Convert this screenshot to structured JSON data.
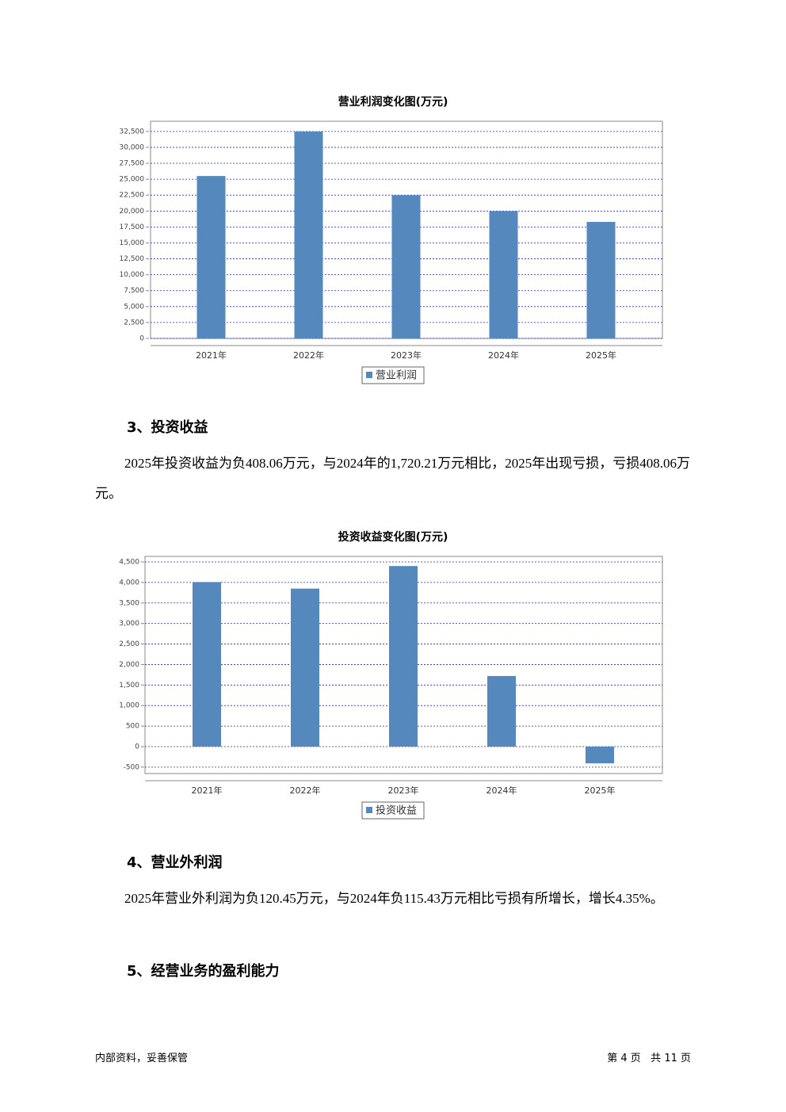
{
  "chart_data": [
    {
      "type": "bar",
      "title": "营业利润变化图(万元)",
      "categories": [
        "2021年",
        "2022年",
        "2023年",
        "2024年",
        "2025年"
      ],
      "series": [
        {
          "name": "营业利润",
          "color": "#5588bd",
          "values": [
            25500,
            32500,
            22500,
            20000,
            18300
          ]
        }
      ],
      "ylim": [
        0,
        34100
      ],
      "yticks": [
        0,
        {
          "value": 2500,
          "label": "2,500"
        },
        {
          "value": 5000,
          "label": "5,000"
        },
        {
          "value": 7500,
          "label": "7,500"
        },
        {
          "value": 10000,
          "label": "10,000"
        },
        {
          "value": 12500,
          "label": "12,500"
        },
        {
          "value": 15000,
          "label": "15,000"
        },
        {
          "value": 17500,
          "label": "17,500"
        },
        {
          "value": 20000,
          "label": "20,000"
        },
        {
          "value": 22500,
          "label": "22,500"
        },
        {
          "value": 25000,
          "label": "25,000"
        },
        {
          "value": 27500,
          "label": "27,500"
        },
        {
          "value": 30000,
          "label": "30,000"
        },
        {
          "value": 32500,
          "label": "32,500"
        }
      ],
      "grid": true
    },
    {
      "type": "bar",
      "title": "投资收益变化图(万元)",
      "categories": [
        "2021年",
        "2022年",
        "2023年",
        "2024年",
        "2025年"
      ],
      "series": [
        {
          "name": "投资收益",
          "color": "#5588bd",
          "values": [
            4010,
            3850,
            4400,
            1720.21,
            -408.06
          ]
        }
      ],
      "ylim": [
        -657,
        4635
      ],
      "yticks": [
        -500,
        0,
        500,
        {
          "value": 1000,
          "label": "1,000"
        },
        {
          "value": 1500,
          "label": "1,500"
        },
        {
          "value": 2000,
          "label": "2,000"
        },
        {
          "value": 2500,
          "label": "2,500"
        },
        {
          "value": 3000,
          "label": "3,000"
        },
        {
          "value": 3500,
          "label": "3,500"
        },
        {
          "value": 4000,
          "label": "4,000"
        },
        {
          "value": 4500,
          "label": "4,500"
        }
      ],
      "grid": true
    }
  ],
  "sections": [
    {
      "heading": "3、投资收益",
      "paragraph": "2025年投资收益为负408.06万元，与2024年的1,720.21万元相比，2025年出现亏损，亏损408.06万元。"
    },
    {
      "heading": "4、营业外利润",
      "paragraph": "2025年营业外利润为负120.45万元，与2024年负115.43万元相比亏损有所增长，增长4.35%。"
    },
    {
      "heading": "5、经营业务的盈利能力"
    }
  ],
  "footer": {
    "left": "内部资料，妥善保管",
    "right": "第 4 页   共 11 页"
  }
}
